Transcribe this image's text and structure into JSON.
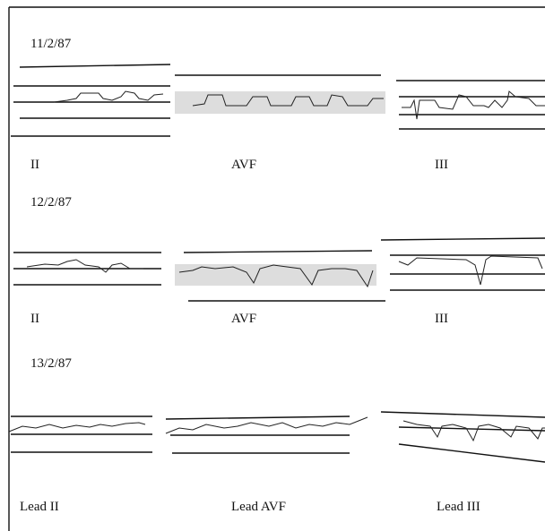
{
  "rows": [
    {
      "date": "11/2/87",
      "labels": [
        "II",
        "AVF",
        "III"
      ]
    },
    {
      "date": "12/2/87",
      "labels": [
        "II",
        "AVF",
        "III"
      ]
    },
    {
      "date": "13/2/87",
      "labels": [
        "Lead II",
        "Lead AVF",
        "Lead III"
      ]
    }
  ]
}
